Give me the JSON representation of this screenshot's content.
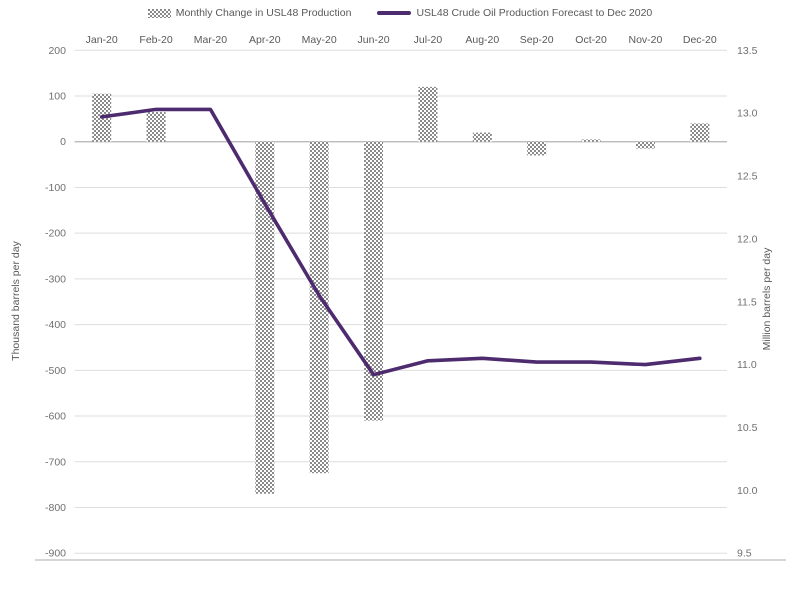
{
  "chart_data": {
    "type": "combo-bar-line",
    "title": "",
    "categories": [
      "Jan-20",
      "Feb-20",
      "Mar-20",
      "Apr-20",
      "May-20",
      "Jun-20",
      "Jul-20",
      "Aug-20",
      "Sep-20",
      "Oct-20",
      "Nov-20",
      "Dec-20"
    ],
    "series": [
      {
        "name": "Monthly Change in USL48 Production",
        "type": "bar",
        "axis": "left",
        "fill_style": "gray-dot-hatch-pattern",
        "values": [
          105,
          65,
          0,
          -770,
          -725,
          -610,
          120,
          20,
          -30,
          5,
          -15,
          40
        ]
      },
      {
        "name": "USL48 Crude Oil Production Forecast to Dec 2020",
        "type": "line",
        "axis": "right",
        "values": [
          12.97,
          13.03,
          13.03,
          12.28,
          11.55,
          10.92,
          11.03,
          11.05,
          11.02,
          11.02,
          11.0,
          11.05
        ]
      }
    ],
    "left_axis": {
      "title": "Thousand barrels per day",
      "max": 200,
      "min": -900,
      "step": 100,
      "tick_labels": [
        "200",
        "100",
        "0",
        "-100",
        "-200",
        "-300",
        "-400",
        "-500",
        "-600",
        "-700",
        "-800",
        "-900"
      ]
    },
    "right_axis": {
      "title": "Million barrels per day",
      "max": 13.5,
      "min": 9.5,
      "step": 0.5,
      "tick_labels": [
        "13.5",
        "13.0",
        "12.5",
        "12.0",
        "11.5",
        "11.0",
        "10.5",
        "10.0",
        "9.5"
      ]
    },
    "grid": true,
    "legend_position": "top-center",
    "colors": {
      "line": "#4d2b6e",
      "bar_pattern": "#8a8a8a",
      "gridline": "#dedede",
      "zero_line": "#b3b3b3",
      "baseline": "#bdbdbd",
      "tick_text": "#707070",
      "label_text": "#595959"
    }
  }
}
